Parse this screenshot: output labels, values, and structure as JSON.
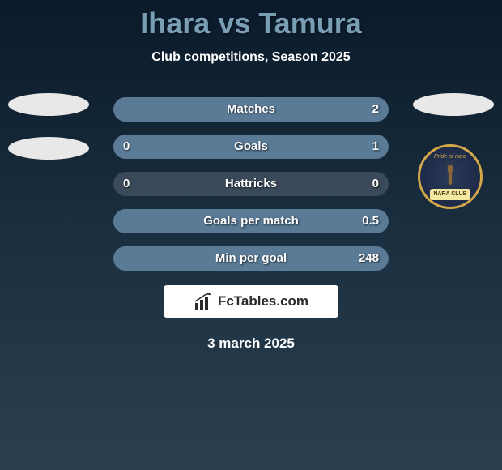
{
  "title": "Ihara vs Tamura",
  "subtitle": "Club competitions, Season 2025",
  "date": "3 march 2025",
  "fctables_label": "FcTables.com",
  "colors": {
    "title_color": "#7a9fb5",
    "text_color": "#ffffff",
    "bar_bg": "#3a4a5a",
    "bar_fill": "#5a7a95",
    "ellipse_color": "#e8e8e8",
    "badge_border": "#d4a84a",
    "badge_bg_inner": "#2a3a5a",
    "badge_bg_outer": "#1a2540",
    "banner_bg": "#f5e8a0",
    "banner_text": "#4a3a1a",
    "fctables_bg": "#ffffff",
    "fctables_text": "#2a2a2a"
  },
  "stats": [
    {
      "label": "Matches",
      "left_value": "",
      "right_value": "2",
      "left_pct": 0,
      "right_pct": 100
    },
    {
      "label": "Goals",
      "left_value": "0",
      "right_value": "1",
      "left_pct": 0,
      "right_pct": 100
    },
    {
      "label": "Hattricks",
      "left_value": "0",
      "right_value": "0",
      "left_pct": 0,
      "right_pct": 0
    },
    {
      "label": "Goals per match",
      "left_value": "",
      "right_value": "0.5",
      "left_pct": 0,
      "right_pct": 100
    },
    {
      "label": "Min per goal",
      "left_value": "",
      "right_value": "248",
      "left_pct": 0,
      "right_pct": 100
    }
  ],
  "badge": {
    "top_text": "Pride of nara",
    "banner_text": "NARA CLUB"
  }
}
